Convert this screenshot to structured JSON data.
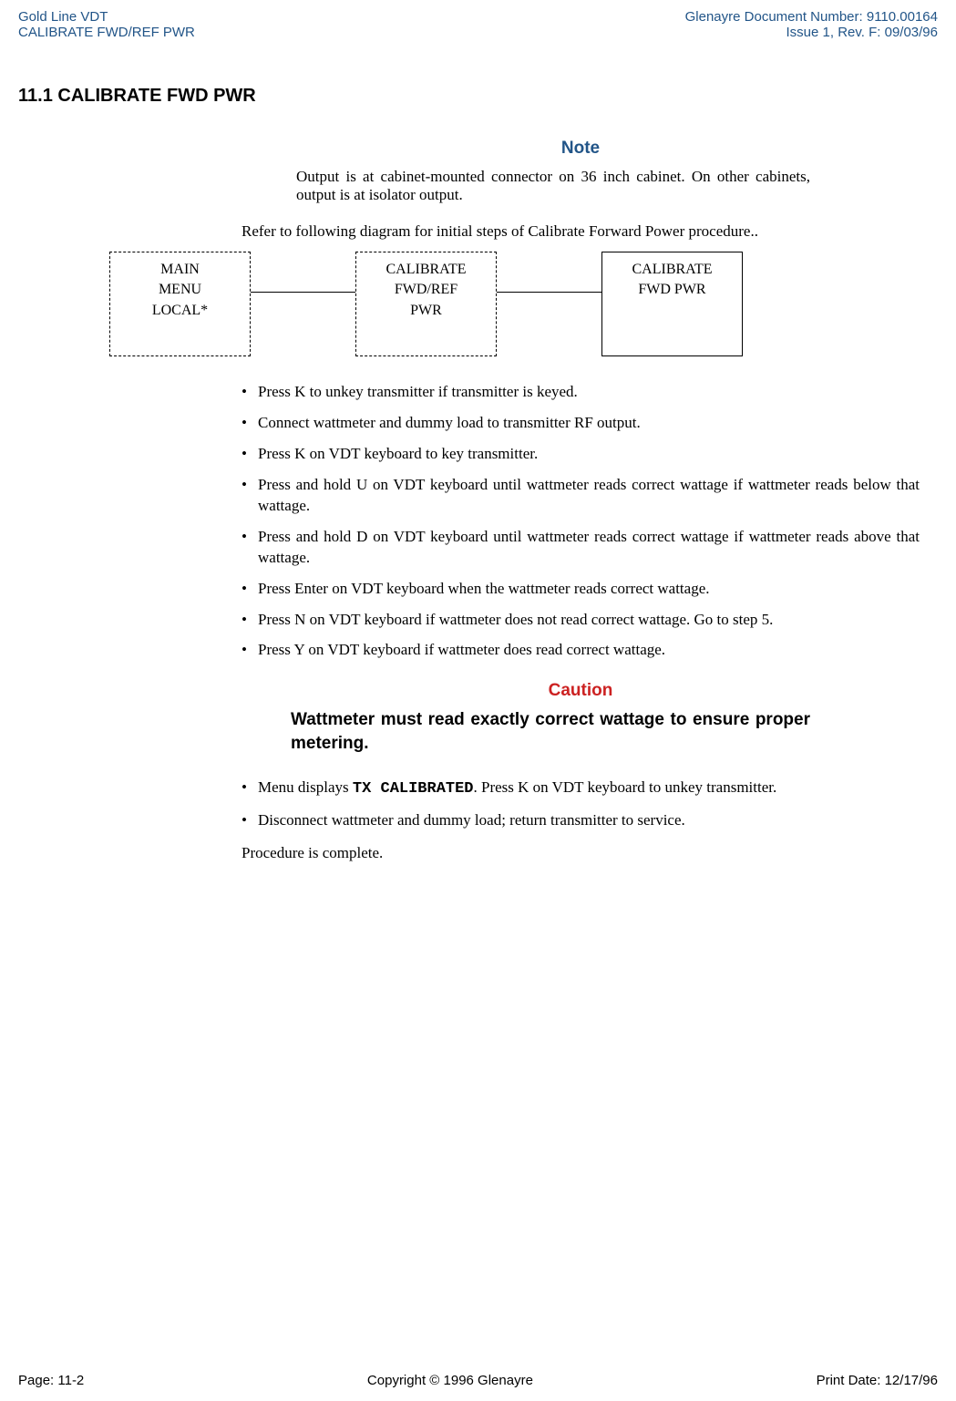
{
  "header": {
    "left_line1": "Gold Line VDT",
    "left_line2": "CALIBRATE FWD/REF PWR",
    "right_line1": "Glenayre Document Number: 9110.00164",
    "right_line2": "Issue 1, Rev. F: 09/03/96"
  },
  "section_heading": "11.1 CALIBRATE FWD PWR",
  "note": {
    "heading": "Note",
    "body": "Output is at cabinet-mounted connector on 36 inch cabinet. On other cabinets, output is at isolator output."
  },
  "refer_line": "Refer to following diagram for initial steps of Calibrate Forward Power procedure..",
  "diagram": {
    "box1": {
      "line1": "MAIN",
      "line2": "MENU",
      "line3": "LOCAL*"
    },
    "box2": {
      "line1": "CALIBRATE",
      "line2": "FWD/REF",
      "line3": "PWR"
    },
    "box3": {
      "line1": "CALIBRATE",
      "line2": "FWD PWR"
    }
  },
  "bullets1": [
    "Press K to unkey transmitter if transmitter is keyed.",
    "Connect wattmeter and dummy load to transmitter RF output.",
    "Press K on VDT keyboard to key transmitter.",
    "Press and hold U on VDT keyboard until wattmeter reads correct wattage if wattmeter reads below that wattage.",
    "Press and hold D on VDT keyboard until wattmeter reads correct wattage if wattmeter reads above that wattage.",
    "Press Enter on VDT keyboard when the wattmeter reads correct wattage.",
    "Press N on VDT keyboard if wattmeter does not read correct wattage. Go to step 5.",
    "Press Y on VDT keyboard if wattmeter does read correct wattage."
  ],
  "caution": {
    "heading": "Caution",
    "body": "Wattmeter must read exactly correct wattage to ensure proper metering."
  },
  "bullets2": {
    "item1_prefix": "Menu displays ",
    "item1_code": "TX CALIBRATED",
    "item1_suffix": ". Press K on VDT keyboard to unkey transmitter.",
    "item2": "Disconnect wattmeter and dummy load; return transmitter to service."
  },
  "procedure_complete": "Procedure is complete.",
  "footer": {
    "left": "Page: 11-2",
    "center": "Copyright © 1996 Glenayre",
    "right": "Print Date: 12/17/96"
  }
}
